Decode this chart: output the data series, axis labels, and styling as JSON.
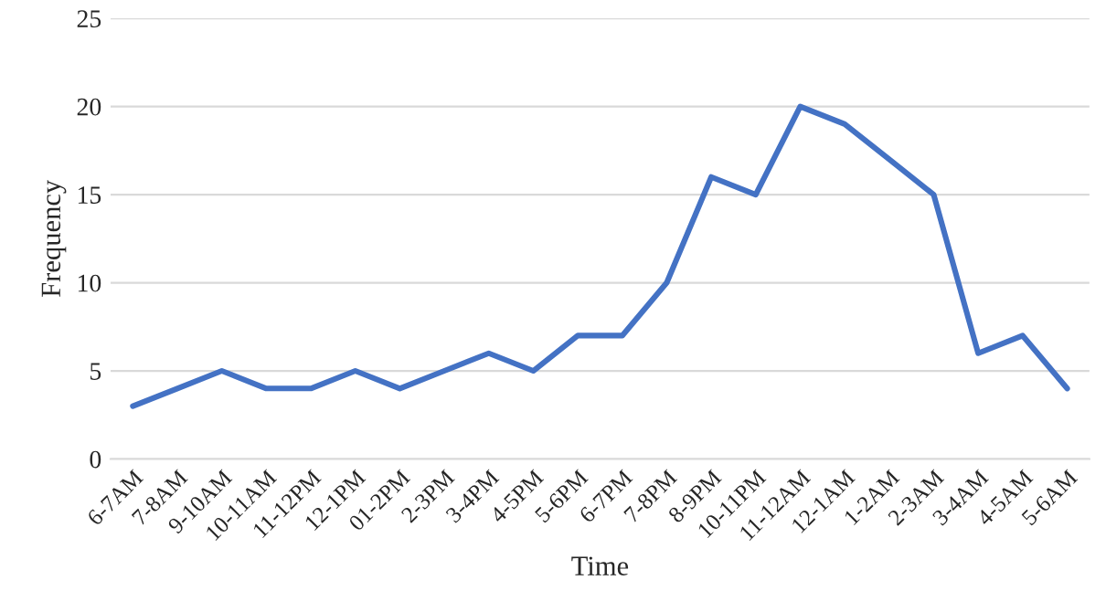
{
  "chart_data": {
    "type": "line",
    "xlabel": "Time",
    "ylabel": "Frequency",
    "categories": [
      "6-7AM",
      "7-8AM",
      "9-10AM",
      "10-11AM",
      "11-12PM",
      "12-1PM",
      "01-2PM",
      "2-3PM",
      "3-4PM",
      "4-5PM",
      "5-6PM",
      "6-7PM",
      "7-8PM",
      "8-9PM",
      "10-11PM",
      "11-12AM",
      "12-1AM",
      "1-2AM",
      "2-3AM",
      "3-4AM",
      "4-5AM",
      "5-6AM"
    ],
    "series": [
      {
        "color": "#4472c4",
        "values": [
          3,
          4,
          5,
          4,
          4,
          5,
          4,
          5,
          6,
          5,
          7,
          7,
          10,
          16,
          15,
          20,
          19,
          17,
          15,
          6,
          7,
          4
        ]
      }
    ],
    "ylim": [
      0,
      25
    ],
    "yticks": [
      0,
      5,
      10,
      15,
      20,
      25
    ],
    "grid": "y",
    "legend": false,
    "marker": "none",
    "line_style": "solid"
  }
}
